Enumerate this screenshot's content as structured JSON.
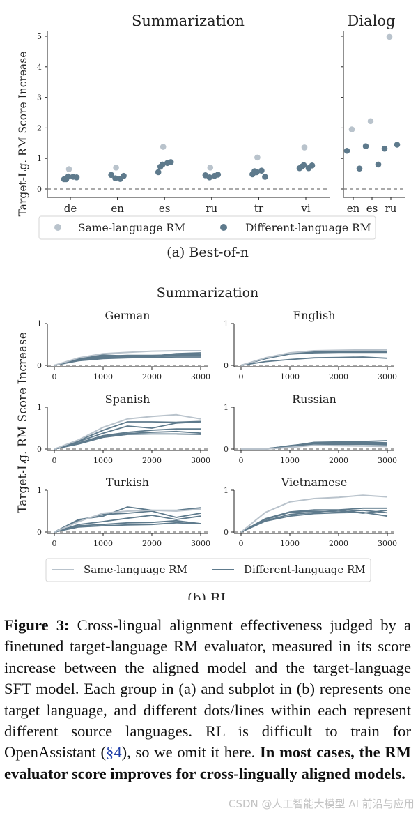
{
  "colors": {
    "same": "#b9c3cc",
    "diff": "#5e7a8c",
    "dash": "#777777",
    "axis": "#222222"
  },
  "chart_data": [
    {
      "type": "scatter",
      "name": "best_of_n_summarization",
      "title": "Summarization",
      "ylabel": "Target-Lg. RM Score Increase",
      "ylim": [
        -0.3,
        5.3
      ],
      "yticks": [
        0,
        1,
        2,
        3,
        4,
        5
      ],
      "categories": [
        "de",
        "en",
        "es",
        "ru",
        "tr",
        "vi"
      ],
      "series": [
        {
          "name": "Same-language RM",
          "points": [
            [
              "de",
              0.65
            ],
            [
              "en",
              0.7
            ],
            [
              "es",
              1.38
            ],
            [
              "ru",
              0.7
            ],
            [
              "tr",
              1.03
            ],
            [
              "vi",
              1.36
            ]
          ]
        },
        {
          "name": "Different-language RM",
          "points": [
            [
              "de",
              0.32
            ],
            [
              "de",
              0.38
            ],
            [
              "de",
              0.41
            ],
            [
              "de",
              0.4
            ],
            [
              "de",
              0.32
            ],
            [
              "en",
              0.46
            ],
            [
              "en",
              0.43
            ],
            [
              "en",
              0.35
            ],
            [
              "en",
              0.33
            ],
            [
              "es",
              0.55
            ],
            [
              "es",
              0.88
            ],
            [
              "es",
              0.8
            ],
            [
              "es",
              0.85
            ],
            [
              "es",
              0.73
            ],
            [
              "ru",
              0.45
            ],
            [
              "ru",
              0.47
            ],
            [
              "ru",
              0.38
            ],
            [
              "ru",
              0.43
            ],
            [
              "tr",
              0.48
            ],
            [
              "tr",
              0.4
            ],
            [
              "tr",
              0.55
            ],
            [
              "tr",
              0.6
            ],
            [
              "tr",
              0.58
            ],
            [
              "vi",
              0.68
            ],
            [
              "vi",
              0.77
            ],
            [
              "vi",
              0.78
            ],
            [
              "vi",
              0.68
            ],
            [
              "vi",
              0.73
            ]
          ]
        }
      ]
    },
    {
      "type": "scatter",
      "name": "best_of_n_dialog",
      "title": "Dialog",
      "ylim": [
        -0.3,
        5.3
      ],
      "categories": [
        "en",
        "es",
        "ru"
      ],
      "series": [
        {
          "name": "Same-language RM",
          "points": [
            [
              "en",
              1.95
            ],
            [
              "es",
              2.22
            ],
            [
              "ru",
              4.98
            ]
          ]
        },
        {
          "name": "Different-language RM",
          "points": [
            [
              "en",
              1.25
            ],
            [
              "en",
              0.67
            ],
            [
              "es",
              1.4
            ],
            [
              "es",
              0.8
            ],
            [
              "ru",
              1.32
            ],
            [
              "ru",
              1.45
            ]
          ]
        }
      ]
    },
    {
      "type": "line",
      "name": "rl_summarization",
      "title": "Summarization",
      "ylabel": "Target-Lg. RM Score Increase",
      "x": [
        0,
        500,
        1000,
        1500,
        2000,
        2500,
        3000
      ],
      "xticks": [
        0,
        1000,
        2000,
        3000
      ],
      "ylim": [
        -0.15,
        1.0
      ],
      "yticks": [
        0,
        1
      ],
      "panels": [
        {
          "title": "German",
          "same": [
            0,
            0.18,
            0.28,
            0.31,
            0.34,
            0.35,
            0.35
          ],
          "diff": [
            [
              0,
              0.15,
              0.22,
              0.24,
              0.24,
              0.25,
              0.25
            ],
            [
              0,
              0.14,
              0.2,
              0.21,
              0.22,
              0.23,
              0.24
            ],
            [
              0,
              0.16,
              0.25,
              0.22,
              0.21,
              0.25,
              0.26
            ],
            [
              0,
              0.12,
              0.18,
              0.2,
              0.22,
              0.28,
              0.3
            ],
            [
              0,
              0.11,
              0.16,
              0.18,
              0.19,
              0.2,
              0.2
            ]
          ]
        },
        {
          "title": "English",
          "same": [
            0,
            0.18,
            0.3,
            0.35,
            0.36,
            0.37,
            0.38
          ],
          "diff": [
            [
              0,
              0.16,
              0.28,
              0.31,
              0.32,
              0.32,
              0.33
            ],
            [
              0,
              0.17,
              0.29,
              0.33,
              0.34,
              0.34,
              0.34
            ],
            [
              0,
              0.16,
              0.27,
              0.3,
              0.31,
              0.31,
              0.31
            ],
            [
              0,
              0.09,
              0.14,
              0.18,
              0.19,
              0.2,
              0.17
            ]
          ]
        },
        {
          "title": "Spanish",
          "same": [
            0,
            0.22,
            0.52,
            0.72,
            0.78,
            0.82,
            0.72
          ],
          "diff": [
            [
              0,
              0.2,
              0.45,
              0.65,
              0.65,
              0.64,
              0.66
            ],
            [
              0,
              0.18,
              0.38,
              0.55,
              0.5,
              0.62,
              0.65
            ],
            [
              0,
              0.15,
              0.32,
              0.4,
              0.45,
              0.48,
              0.48
            ],
            [
              0,
              0.14,
              0.3,
              0.37,
              0.4,
              0.42,
              0.38
            ],
            [
              0,
              0.12,
              0.28,
              0.35,
              0.36,
              0.36,
              0.35
            ]
          ]
        },
        {
          "title": "Russian",
          "same": [
            0,
            0.0,
            0.04,
            0.09,
            0.08,
            0.07,
            0.06
          ],
          "diff": [
            [
              0,
              0.01,
              0.07,
              0.16,
              0.17,
              0.18,
              0.2
            ],
            [
              0,
              0.0,
              0.08,
              0.14,
              0.16,
              0.16,
              0.15
            ],
            [
              0,
              0.01,
              0.06,
              0.12,
              0.13,
              0.13,
              0.12
            ],
            [
              0,
              0.0,
              0.05,
              0.1,
              0.11,
              0.11,
              0.1
            ]
          ]
        },
        {
          "title": "Turkish",
          "same": [
            0,
            0.25,
            0.45,
            0.5,
            0.52,
            0.5,
            0.55
          ],
          "diff": [
            [
              0,
              0.3,
              0.38,
              0.6,
              0.52,
              0.52,
              0.58
            ],
            [
              0,
              0.28,
              0.42,
              0.45,
              0.5,
              0.35,
              0.45
            ],
            [
              0,
              0.18,
              0.25,
              0.33,
              0.4,
              0.3,
              0.38
            ],
            [
              0,
              0.15,
              0.18,
              0.22,
              0.23,
              0.27,
              0.2
            ],
            [
              0,
              0.12,
              0.15,
              0.17,
              0.18,
              0.22,
              0.2
            ]
          ]
        },
        {
          "title": "Vietnamese",
          "same": [
            0,
            0.47,
            0.72,
            0.8,
            0.83,
            0.88,
            0.84
          ],
          "diff": [
            [
              0,
              0.32,
              0.48,
              0.53,
              0.53,
              0.57,
              0.57
            ],
            [
              0,
              0.3,
              0.47,
              0.5,
              0.48,
              0.52,
              0.46
            ],
            [
              0,
              0.27,
              0.42,
              0.47,
              0.52,
              0.45,
              0.52
            ],
            [
              0,
              0.26,
              0.38,
              0.44,
              0.46,
              0.47,
              0.38
            ]
          ]
        }
      ]
    }
  ],
  "legend": {
    "same": "Same-language RM",
    "diff": "Different-language RM"
  },
  "subcaptions": {
    "a": "(a) Best-of-n",
    "b": "(b) RL"
  },
  "caption": {
    "label": "Figure 3:",
    "text": "Cross-lingual alignment effectiveness judged by a finetuned target-language RM evaluator, measured in its score increase between the aligned model and the target-language SFT model. Each group in (a) and subplot in (b) represents one target language, and different dots/lines within each represent different source languages. RL is difficult to train for OpenAssistant (",
    "ref": "§4",
    "text2": "), so we omit it here. ",
    "bold": "In most cases, the RM evaluator score improves for cross-lingually aligned models."
  },
  "watermark": "CSDN @人工智能大模型 AI 前沿与应用"
}
